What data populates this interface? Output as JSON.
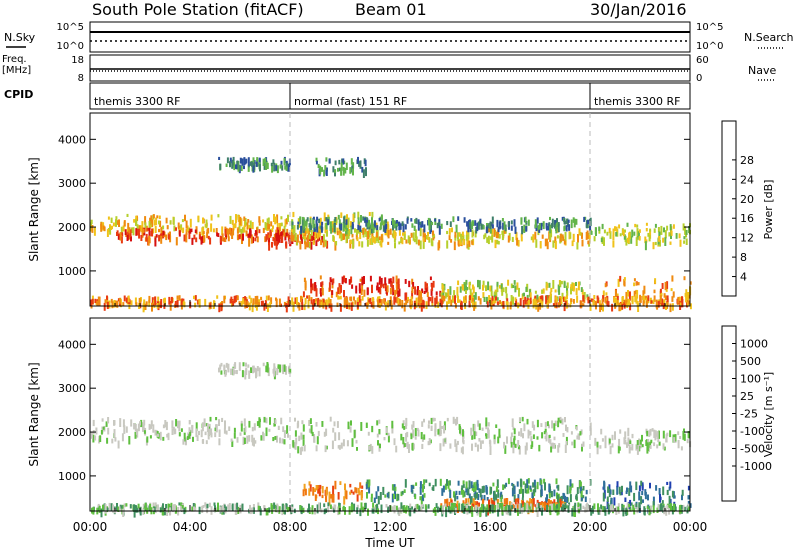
{
  "header": {
    "station": "South Pole Station (fitACF)",
    "beam": "Beam 01",
    "date": "30/Jan/2016"
  },
  "strips": {
    "nsky_label": "N.Sky",
    "nsky_ticks": [
      "10^5",
      "10^0"
    ],
    "nsearch_label": "N.Search",
    "nsearch_ticks": [
      "10^5",
      "10^0"
    ],
    "freq_label_1": "Freq.",
    "freq_label_2": "[MHz]",
    "freq_ticks": [
      "18",
      "8"
    ],
    "nave_label": "Nave",
    "nave_ticks": [
      "60",
      "0"
    ],
    "cpid_label": "CPID",
    "cpid_segments": [
      {
        "label": "themis 3300 RF",
        "start_hour": 0,
        "end_hour": 8
      },
      {
        "label": "normal (fast) 151 RF",
        "start_hour": 8,
        "end_hour": 20
      },
      {
        "label": "themis 3300 RF",
        "start_hour": 20,
        "end_hour": 24
      }
    ]
  },
  "xaxis": {
    "label": "Time UT",
    "ticks": [
      "00:00",
      "04:00",
      "08:00",
      "12:00",
      "16:00",
      "20:00",
      "00:00"
    ]
  },
  "chart_data": [
    {
      "type": "heatmap",
      "name": "power",
      "ylabel": "Slant Range [km]",
      "yticks": [
        "1000",
        "2000",
        "3000",
        "4000"
      ],
      "ylim": [
        200,
        4600
      ],
      "xlim_hours": [
        0,
        24
      ],
      "colorbar_label": "Power [dB]",
      "colorbar_ticks": [
        "4",
        "8",
        "12",
        "16",
        "20",
        "24",
        "28"
      ],
      "colorbar_colors": [
        "#1f2bd9",
        "#2a4f9c",
        "#3f7f6a",
        "#62b44a",
        "#b6cf2c",
        "#f0c21a",
        "#ef8a10",
        "#e83a12",
        "#d60f0f"
      ],
      "bands": [
        {
          "t0": 0.0,
          "t1": 8.0,
          "r0": 1950,
          "r1": 2300,
          "tone": 5
        },
        {
          "t0": 1.0,
          "t1": 8.0,
          "r0": 1750,
          "r1": 2000,
          "tone": 7
        },
        {
          "t0": 5.0,
          "t1": 8.0,
          "r0": 3400,
          "r1": 3600,
          "tone": 2
        },
        {
          "t0": 8.0,
          "t1": 12.0,
          "r0": 1900,
          "r1": 2350,
          "tone": 4
        },
        {
          "t0": 7.0,
          "t1": 9.5,
          "r0": 1650,
          "r1": 1900,
          "tone": 8
        },
        {
          "t0": 8.0,
          "t1": 20.0,
          "r0": 1650,
          "r1": 2000,
          "tone": 5
        },
        {
          "t0": 8.0,
          "t1": 20.0,
          "r0": 2000,
          "r1": 2250,
          "tone": 2
        },
        {
          "t0": 8.5,
          "t1": 14.0,
          "r0": 500,
          "r1": 900,
          "tone": 7
        },
        {
          "t0": 14.0,
          "t1": 20.0,
          "r0": 400,
          "r1": 800,
          "tone": 4
        },
        {
          "t0": 9.0,
          "t1": 11.0,
          "r0": 3300,
          "r1": 3600,
          "tone": 2
        },
        {
          "t0": 20.0,
          "t1": 24.0,
          "r0": 1650,
          "r1": 2100,
          "tone": 4
        },
        {
          "t0": 20.5,
          "t1": 24.0,
          "r0": 300,
          "r1": 900,
          "tone": 6
        },
        {
          "t0": 0.0,
          "t1": 24.0,
          "r0": 250,
          "r1": 450,
          "tone": 6
        }
      ]
    },
    {
      "type": "heatmap",
      "name": "velocity",
      "ylabel": "Slant Range [km]",
      "yticks": [
        "1000",
        "2000",
        "3000",
        "4000"
      ],
      "ylim": [
        200,
        4600
      ],
      "xlim_hours": [
        0,
        24
      ],
      "colorbar_label": "Velocity [m s⁻¹]",
      "colorbar_ticks": [
        "1000",
        "500",
        "100",
        "25",
        "-25",
        "-100",
        "-500",
        "-1000"
      ],
      "colorbar_colors": [
        "#2040b0",
        "#2f6f9a",
        "#3f8f5f",
        "#5fbf3f",
        "#c8c8c0",
        "#c8c8c0",
        "#f0a020",
        "#f07810",
        "#e84010",
        "#e01010"
      ],
      "bands": [
        {
          "t0": 0.0,
          "t1": 8.0,
          "r0": 1800,
          "r1": 2350,
          "tone": 4
        },
        {
          "t0": 8.0,
          "t1": 20.0,
          "r0": 1650,
          "r1": 2350,
          "tone": 4
        },
        {
          "t0": 20.0,
          "t1": 24.0,
          "r0": 1650,
          "r1": 2100,
          "tone": 4
        },
        {
          "t0": 5.0,
          "t1": 8.0,
          "r0": 3400,
          "r1": 3600,
          "tone": 4
        },
        {
          "t0": 8.5,
          "t1": 11.0,
          "r0": 500,
          "r1": 900,
          "tone": 7
        },
        {
          "t0": 11.0,
          "t1": 20.0,
          "r0": 500,
          "r1": 950,
          "tone": 2
        },
        {
          "t0": 14.0,
          "t1": 19.0,
          "r0": 300,
          "r1": 500,
          "tone": 7
        },
        {
          "t0": 20.5,
          "t1": 24.0,
          "r0": 300,
          "r1": 900,
          "tone": 1
        },
        {
          "t0": 0.0,
          "t1": 24.0,
          "r0": 250,
          "r1": 400,
          "tone": 3
        }
      ]
    }
  ]
}
